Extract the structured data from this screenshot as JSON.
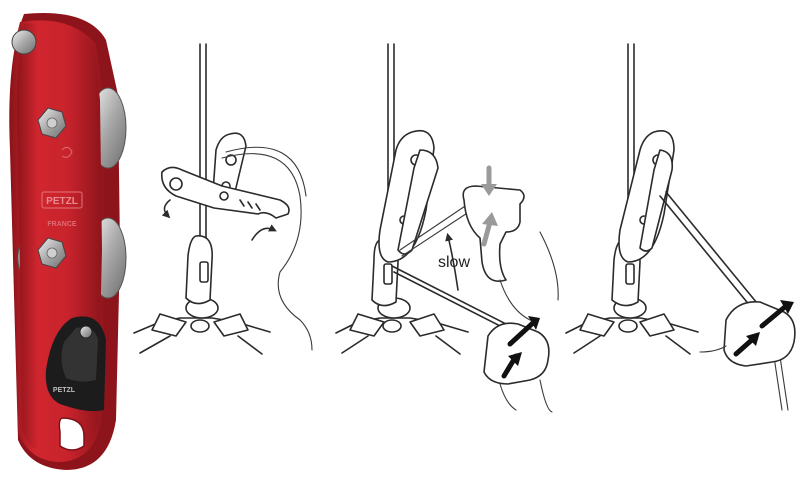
{
  "product": {
    "brand_upper": "PETZL",
    "country": "FRANCE",
    "brand_handle": "PETZL"
  },
  "panels": [
    {
      "id": "open-handle",
      "arrows": [
        "rotate-ccw",
        "rotate-cw"
      ]
    },
    {
      "id": "descend",
      "arrows": [
        "grip-down",
        "grip-up",
        "feed-up"
      ],
      "label": "slow"
    },
    {
      "id": "brake",
      "arrows": [
        "grip-in",
        "grip-out"
      ]
    }
  ],
  "colors": {
    "device_red": "#c8232c",
    "device_dark": "#8e141b",
    "handle_black": "#1c1c1c",
    "ink": "#2b2b2b",
    "arrow_black": "#111111",
    "arrow_gray": "#9a9a9a"
  },
  "icons": [
    "descender-device",
    "rope",
    "carabiner",
    "hand",
    "curved-arrow",
    "straight-arrow"
  ]
}
